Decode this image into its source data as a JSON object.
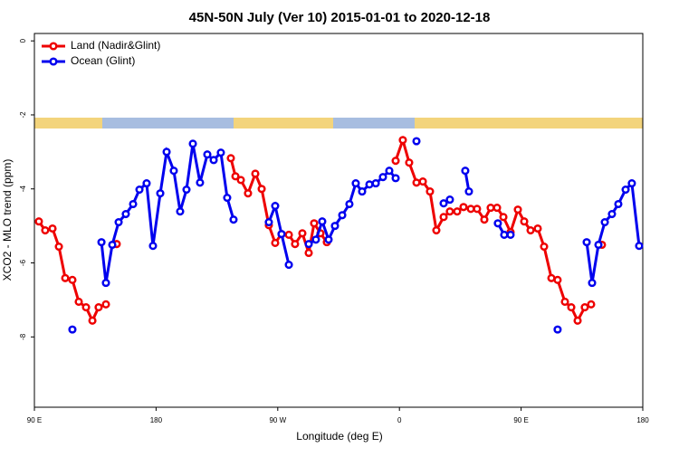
{
  "chart_data": {
    "type": "line",
    "title": "45N-50N July (Ver 10)   2015-01-01 to 2020-12-18",
    "x_label": "Longitude (deg E)",
    "y_label": "XCO2 - MLO trend (ppm)",
    "xlim": [
      90,
      540
    ],
    "ylim": [
      -9.9,
      0.2
    ],
    "xticks": [
      {
        "value": 90,
        "label": "90 E"
      },
      {
        "value": 180,
        "label": "180"
      },
      {
        "value": 270,
        "label": "90 W"
      },
      {
        "value": 360,
        "label": "0"
      },
      {
        "value": 450,
        "label": "90 E"
      },
      {
        "value": 540,
        "label": "180"
      }
    ],
    "yticks": [
      0,
      -2,
      -4,
      -6,
      -8
    ],
    "grid": false,
    "legend": "top-left",
    "series": [
      {
        "name": "Land (Nadir&Glint)",
        "color": "#ee0000",
        "x": [
          93.3,
          98.0,
          103.4,
          108.1,
          112.8,
          118.1,
          122.8,
          128.2,
          132.9,
          137.5,
          142.9,
          146.9,
          150.9,
          200,
          235.3,
          238.7,
          242.7,
          248.0,
          253.4,
          258.1,
          263.4,
          268.1,
          272.8,
          278.2,
          282.8,
          288.2,
          292.9,
          296.9,
          301.6,
          306.3,
          332.4,
          357.2,
          362.5,
          367.2,
          372.6,
          377.3,
          382.6,
          387.3,
          392.7,
          397.3,
          402.7,
          407.4,
          412.8,
          417.4,
          422.8,
          427.5,
          432.2,
          436.9,
          442.2,
          447.6,
          452.3,
          457.0,
          462.3,
          467.0,
          472.4,
          477.0,
          482.4,
          487.1,
          491.8,
          497.1,
          501.8,
          505.2,
          509.8
        ],
        "values": [
          -4.88,
          -5.12,
          -5.07,
          -5.56,
          -6.41,
          -6.46,
          -7.05,
          -7.2,
          -7.56,
          -7.2,
          -7.12,
          null,
          -5.49,
          null,
          -3.17,
          -3.66,
          -3.76,
          -4.12,
          -3.59,
          -4.0,
          -4.98,
          -5.46,
          -5.22,
          -5.24,
          -5.49,
          -5.2,
          -5.73,
          -4.93,
          -5.2,
          -5.44,
          null,
          -3.24,
          -2.68,
          -3.29,
          -3.83,
          -3.8,
          -4.07,
          -5.12,
          -4.76,
          -4.61,
          -4.61,
          -4.49,
          -4.54,
          -4.54,
          -4.83,
          -4.51,
          -4.51,
          -4.76,
          -5.17,
          -4.56,
          -4.88,
          -5.12,
          -5.07,
          -5.56,
          -6.41,
          -6.46,
          -7.05,
          -7.2,
          -7.56,
          -7.2,
          -7.12,
          null,
          -5.51
        ]
      },
      {
        "name": "Ocean (Glint)",
        "color": "#0000ee",
        "x": [
          118.1,
          131.5,
          139.6,
          142.9,
          147.6,
          152.3,
          157.6,
          163.0,
          167.7,
          173.0,
          177.7,
          183.1,
          187.8,
          193.1,
          197.8,
          202.5,
          207.2,
          212.5,
          217.9,
          222.6,
          227.9,
          232.6,
          237.3,
          252.0,
          263.4,
          268.1,
          272.8,
          278.2,
          285.5,
          292.9,
          298.2,
          302.9,
          307.6,
          312.3,
          317.7,
          323.0,
          327.7,
          332.4,
          337.8,
          342.5,
          347.8,
          352.5,
          357.2,
          364.5,
          372.6,
          382.6,
          392.7,
          397.3,
          402.7,
          408.7,
          411.4,
          422.8,
          432.8,
          437.5,
          442.2,
          459.6,
          477.0,
          486.4,
          498.5,
          502.5,
          507.2,
          511.9,
          517.2,
          521.9,
          527.3,
          531.9,
          537.3
        ],
        "values": [
          -7.8,
          null,
          -5.44,
          -6.54,
          -5.51,
          -4.9,
          -4.68,
          -4.41,
          -4.02,
          -3.85,
          -5.54,
          -4.12,
          -3.0,
          -3.51,
          -4.61,
          -4.02,
          -2.78,
          -3.83,
          -3.07,
          -3.22,
          -3.02,
          -4.24,
          -4.83,
          null,
          -4.9,
          -4.46,
          -5.22,
          -6.05,
          null,
          -5.49,
          -5.37,
          -4.88,
          -5.37,
          -5.0,
          -4.71,
          -4.41,
          -3.85,
          -4.07,
          -3.88,
          -3.85,
          -3.68,
          -3.51,
          -3.71,
          null,
          -2.71,
          null,
          -4.39,
          -4.29,
          null,
          -3.51,
          -4.07,
          null,
          -4.93,
          -5.24,
          -5.24,
          null,
          -7.8,
          null,
          -5.44,
          -6.54,
          -5.51,
          -4.9,
          -4.68,
          -4.41,
          -4.02,
          -3.85,
          -5.54
        ]
      }
    ]
  }
}
